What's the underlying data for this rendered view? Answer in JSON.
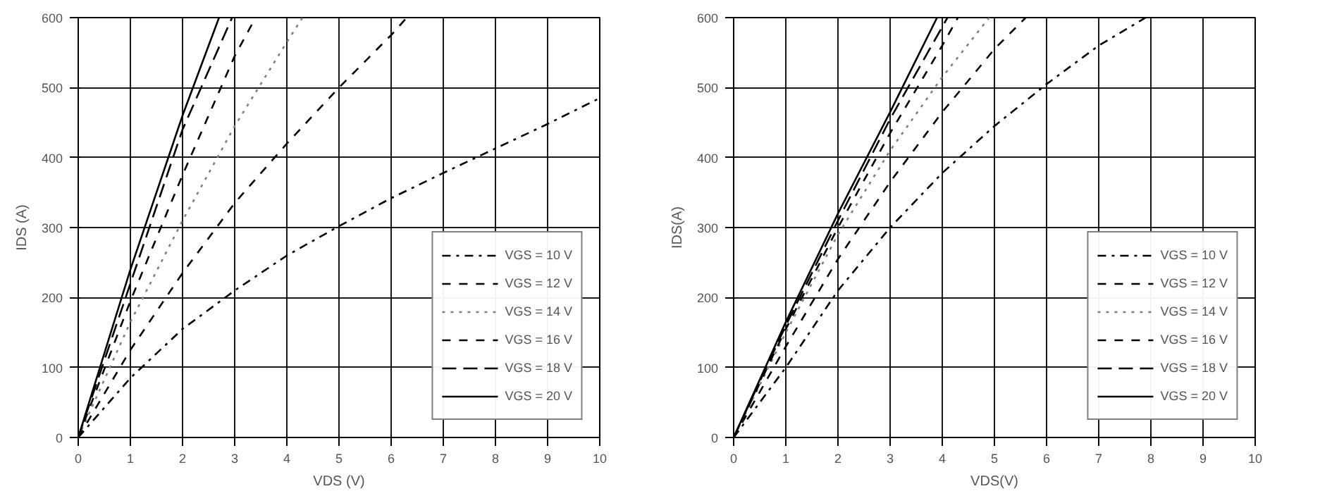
{
  "chart_data": [
    {
      "type": "line",
      "xlabel": "VDS (V)",
      "ylabel": "IDS (A)",
      "xlim": [
        0,
        10
      ],
      "ylim": [
        0,
        600
      ],
      "xticks": [
        0,
        1,
        2,
        3,
        4,
        5,
        6,
        7,
        8,
        9,
        10
      ],
      "yticks": [
        0,
        100,
        200,
        300,
        400,
        500,
        600
      ],
      "grid": true,
      "legend": "bottom right",
      "series": [
        {
          "name": "VGS = 10 V",
          "color": "#000000",
          "line_style": "dashdot",
          "x": [
            0,
            1,
            2,
            3,
            4,
            5,
            6,
            7,
            8,
            9,
            10
          ],
          "values": [
            0,
            85,
            155,
            210,
            260,
            302,
            342,
            378,
            413,
            448,
            485
          ]
        },
        {
          "name": "VGS = 12 V",
          "color": "#000000",
          "line_style": "dashed",
          "x": [
            0,
            1,
            2,
            3,
            4,
            5,
            6,
            6.3
          ],
          "values": [
            0,
            125,
            235,
            335,
            420,
            500,
            575,
            600
          ]
        },
        {
          "name": "VGS = 14 V",
          "color": "#808080",
          "line_style": "dotted",
          "x": [
            0,
            1,
            2,
            3,
            4,
            4.3
          ],
          "values": [
            0,
            165,
            310,
            445,
            565,
            600
          ]
        },
        {
          "name": "VGS = 16 V",
          "color": "#000000",
          "line_style": "dashed",
          "x": [
            0,
            1,
            2,
            3,
            3.4
          ],
          "values": [
            0,
            195,
            375,
            545,
            600
          ]
        },
        {
          "name": "VGS = 18 V",
          "color": "#000000",
          "line_style": "long_dashed",
          "x": [
            0,
            1,
            2,
            2.95
          ],
          "values": [
            0,
            220,
            440,
            600
          ]
        },
        {
          "name": "VGS = 20 V",
          "color": "#000000",
          "line_style": "solid",
          "x": [
            0,
            1,
            2,
            2.7
          ],
          "values": [
            0,
            240,
            460,
            600
          ]
        }
      ]
    },
    {
      "type": "line",
      "xlabel": "VDS(V)",
      "ylabel": "IDS(A)",
      "xlim": [
        0,
        10
      ],
      "ylim": [
        0,
        600
      ],
      "xticks": [
        0,
        1,
        2,
        3,
        4,
        5,
        6,
        7,
        8,
        9,
        10
      ],
      "yticks": [
        0,
        100,
        200,
        300,
        400,
        500,
        600
      ],
      "grid": true,
      "legend": "bottom right",
      "series": [
        {
          "name": "VGS = 10 V",
          "color": "#000000",
          "line_style": "dashdot",
          "x": [
            0,
            1,
            2,
            3,
            4,
            5,
            6,
            7,
            7.9
          ],
          "values": [
            0,
            100,
            210,
            300,
            378,
            445,
            505,
            560,
            600
          ]
        },
        {
          "name": "VGS = 12 V",
          "color": "#000000",
          "line_style": "dashed",
          "x": [
            0,
            1,
            2,
            3,
            4,
            5,
            5.6
          ],
          "values": [
            0,
            130,
            255,
            365,
            465,
            555,
            600
          ]
        },
        {
          "name": "VGS = 14 V",
          "color": "#808080",
          "line_style": "dotted",
          "x": [
            0,
            1,
            2,
            3,
            4,
            4.9
          ],
          "values": [
            0,
            150,
            290,
            410,
            515,
            600
          ]
        },
        {
          "name": "VGS = 16 V",
          "color": "#000000",
          "line_style": "dashed",
          "x": [
            0,
            1,
            2,
            3,
            4,
            4.3
          ],
          "values": [
            0,
            155,
            300,
            435,
            560,
            600
          ]
        },
        {
          "name": "VGS = 18 V",
          "color": "#000000",
          "line_style": "long_dashed",
          "x": [
            0,
            1,
            2,
            3,
            4.1
          ],
          "values": [
            0,
            160,
            310,
            455,
            600
          ]
        },
        {
          "name": "VGS = 20 V",
          "color": "#000000",
          "line_style": "solid",
          "x": [
            0,
            1,
            2,
            3,
            3.9
          ],
          "values": [
            0,
            165,
            320,
            465,
            600
          ]
        }
      ]
    }
  ]
}
